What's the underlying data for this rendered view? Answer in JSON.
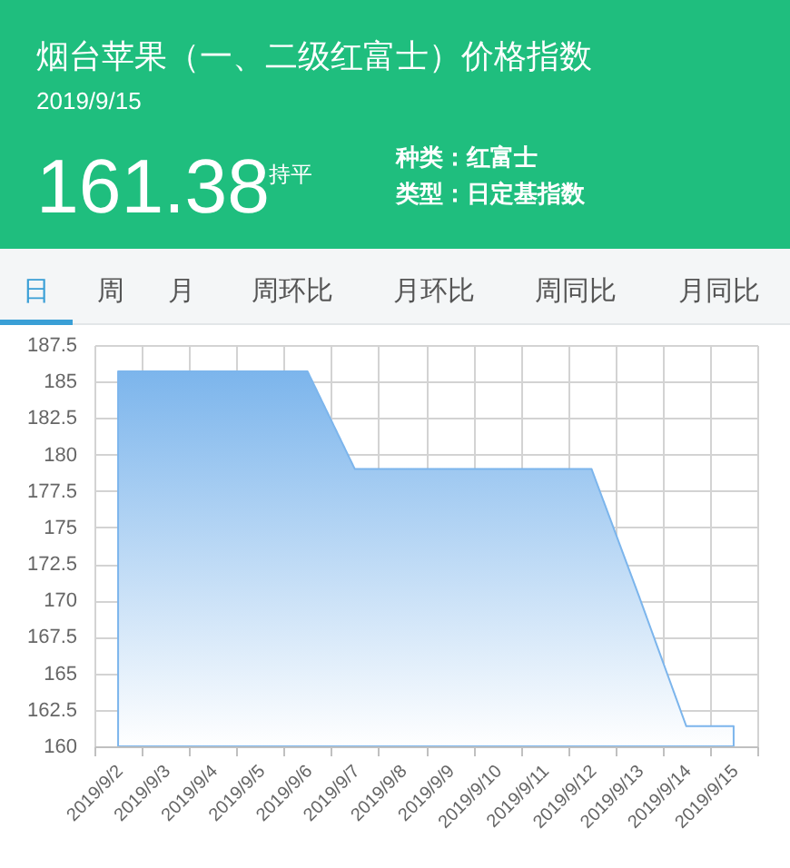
{
  "chart_data": {
    "type": "area",
    "title": "烟台苹果（一、二级红富士）价格指数",
    "subtitle": "2019/9/15",
    "annotations": [
      "161.38",
      "持平",
      "种类：红富士",
      "类型：日定基指数",
      "日",
      "周",
      "月",
      "周环比",
      "月环比",
      "周同比",
      "月同比"
    ],
    "categories": [
      "2019/9/2",
      "2019/9/3",
      "2019/9/4",
      "2019/9/5",
      "2019/9/6",
      "2019/9/7",
      "2019/9/8",
      "2019/9/9",
      "2019/9/10",
      "2019/9/11",
      "2019/9/12",
      "2019/9/13",
      "2019/9/14",
      "2019/9/15"
    ],
    "series": [
      {
        "color": "#7cb5ec",
        "values": [
          185.7,
          185.7,
          185.7,
          185.7,
          185.7,
          179,
          179,
          179,
          179,
          179,
          179,
          170.3,
          161.38,
          161.38
        ]
      }
    ],
    "ylim": [
      160,
      187.5
    ],
    "yticks": [
      160,
      162.5,
      165,
      167.5,
      170,
      172.5,
      175,
      177.5,
      180,
      182.5,
      185,
      187.5
    ],
    "grid": true
  }
}
